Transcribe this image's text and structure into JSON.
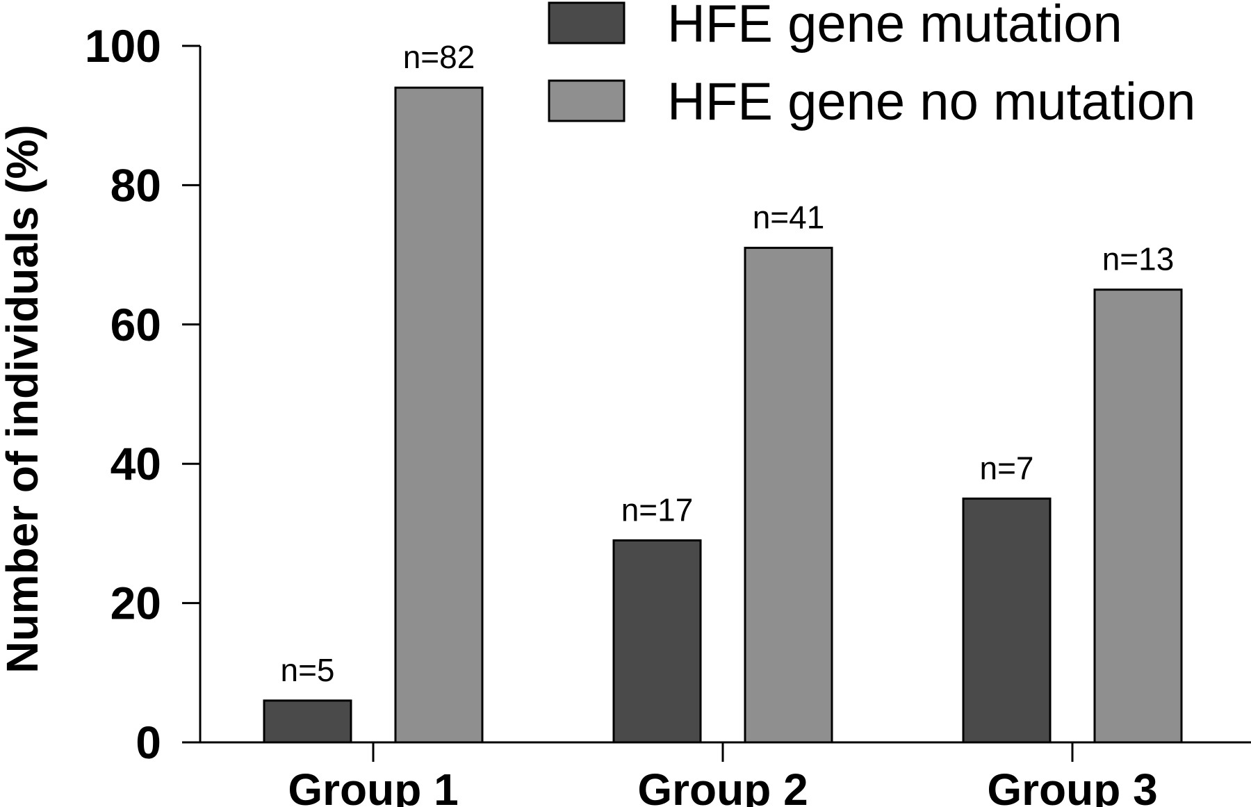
{
  "chart_data": {
    "type": "bar",
    "title": "",
    "xlabel": "",
    "ylabel": "Number of individuals (%)",
    "ylim": [
      0,
      100
    ],
    "yticks": [
      0,
      20,
      40,
      60,
      80,
      100
    ],
    "categories": [
      "Group 1",
      "Group 2",
      "Group 3"
    ],
    "grid": false,
    "legend_position": "top-right",
    "series": [
      {
        "name": "HFE gene mutation",
        "color": "#4a4a4a",
        "values": [
          6,
          29,
          35
        ],
        "labels": [
          "n=5",
          "n=17",
          "n=7"
        ]
      },
      {
        "name": "HFE gene no mutation",
        "color": "#8f8f8f",
        "values": [
          94,
          71,
          65
        ],
        "labels": [
          "n=82",
          "n=41",
          "n=13"
        ]
      }
    ]
  }
}
